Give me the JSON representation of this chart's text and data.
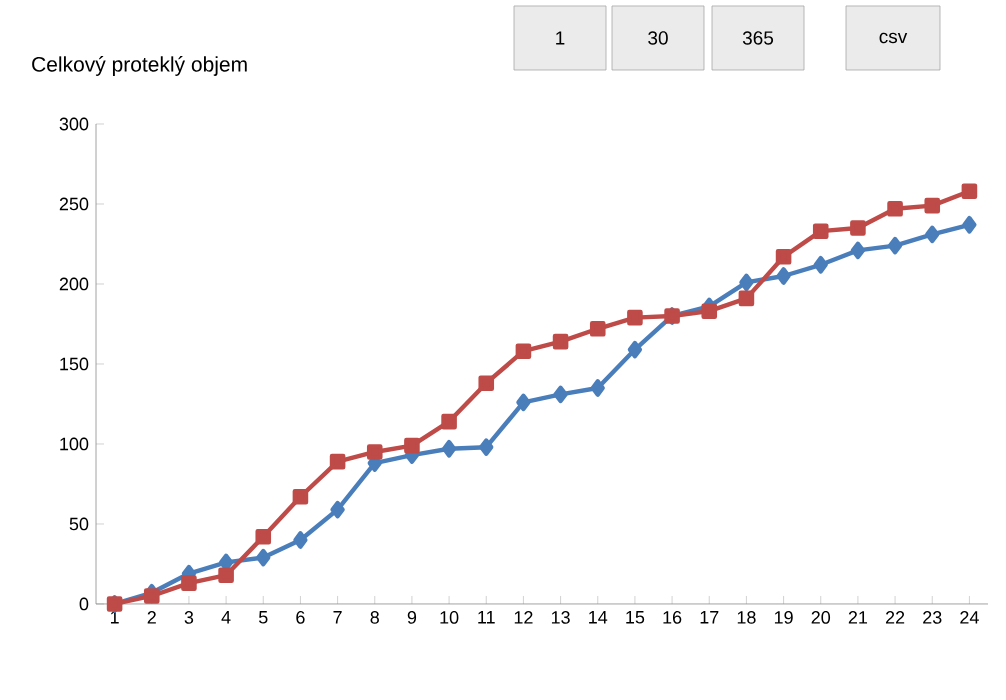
{
  "chart_data": {
    "type": "line",
    "title": "Celkový proteklý objem",
    "annotations": [
      "1",
      "30",
      "365",
      "csv"
    ],
    "categories": [
      "1",
      "2",
      "3",
      "4",
      "5",
      "6",
      "7",
      "8",
      "9",
      "10",
      "11",
      "12",
      "13",
      "14",
      "15",
      "16",
      "17",
      "18",
      "19",
      "20",
      "21",
      "22",
      "23",
      "24"
    ],
    "series": [
      {
        "color": "#4a7ebb",
        "marker": "diamond",
        "values": [
          0,
          7,
          19,
          26,
          29,
          40,
          59,
          88,
          93,
          97,
          98,
          126,
          131,
          135,
          159,
          180,
          186,
          201,
          205,
          212,
          221,
          224,
          231,
          237
        ]
      },
      {
        "color": "#be4b48",
        "marker": "square",
        "values": [
          0,
          5,
          13,
          18,
          42,
          67,
          89,
          95,
          99,
          114,
          138,
          158,
          164,
          172,
          179,
          180,
          183,
          191,
          217,
          233,
          235,
          247,
          249,
          258
        ]
      }
    ],
    "ylim": [
      0,
      300
    ],
    "yticks": [
      0,
      50,
      100,
      150,
      200,
      250,
      300
    ],
    "grid": false,
    "line_style": "solid"
  }
}
